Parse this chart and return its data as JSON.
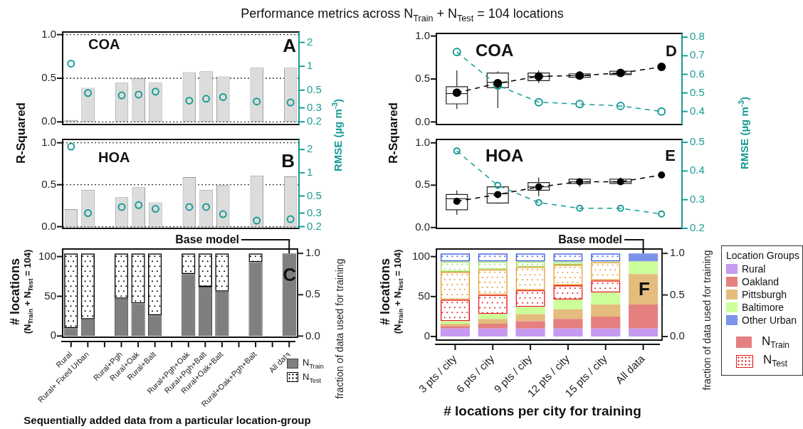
{
  "chart_data": [
    {
      "type": "bar",
      "title": "Performance metrics across N$_{Train}$ + N$_{Test}$ = 104 locations",
      "ylabel": "R-Squared",
      "y2label": "RMSE (µg m$^{-3}$)",
      "categories": [
        null,
        null,
        null,
        null,
        null,
        null,
        null,
        null,
        null,
        null,
        null,
        null,
        null,
        null
      ],
      "series": [
        {
          "type": "bar",
          "color": "#dcdcdc",
          "values": [
            0.02,
            0.39,
            null,
            0.45,
            0.5,
            0.45,
            null,
            0.57,
            0.58,
            0.52,
            null,
            0.62,
            null,
            0.62
          ]
        },
        {
          "type": "scatter",
          "axis": "y2",
          "color": "#1a9c96",
          "values": [
            1.08,
            0.46,
            null,
            0.43,
            0.44,
            0.48,
            null,
            0.37,
            0.39,
            0.41,
            null,
            0.36,
            null,
            0.35
          ]
        }
      ],
      "ylim": [
        -0.03,
        1.03
      ],
      "yticks": [
        {
          "value": 0,
          "label": "0.0"
        },
        {
          "value": 0.5,
          "label": "0.5"
        },
        {
          "value": 1,
          "label": "1.0"
        }
      ],
      "y2lim": [
        0.185,
        2.7
      ],
      "y2ticks": [
        0.2,
        0.3,
        0.5,
        1,
        2
      ],
      "log": "y2",
      "grid": "y",
      "marker": "circle",
      "tick_labels": "y",
      "annotations": [
        "COA",
        "A"
      ]
    },
    {
      "type": "bar",
      "categories": [
        null,
        null,
        null,
        null,
        null,
        null,
        null,
        null,
        null,
        null,
        null,
        null,
        null,
        null
      ],
      "series": [
        {
          "type": "bar",
          "color": "#dcdcdc",
          "values": [
            0.21,
            0.44,
            null,
            0.35,
            0.47,
            0.29,
            null,
            0.59,
            0.44,
            0.5,
            null,
            0.61,
            null,
            0.6
          ]
        },
        {
          "type": "scatter",
          "axis": "y2",
          "color": "#1a9c96",
          "values": [
            2.18,
            0.3,
            null,
            0.36,
            0.38,
            0.34,
            null,
            0.36,
            0.36,
            0.29,
            null,
            0.24,
            null,
            0.25
          ]
        }
      ],
      "ylim": [
        -0.02,
        1.04
      ],
      "yticks": [
        {
          "value": 0,
          "label": "0.0"
        },
        {
          "value": 0.5,
          "label": "0.5"
        },
        {
          "value": 1,
          "label": "1.0"
        }
      ],
      "y2lim": [
        0.19,
        2.7
      ],
      "y2ticks": [
        0.2,
        0.3,
        0.5,
        1,
        2
      ],
      "log": "y2",
      "grid": "y",
      "marker": "circle",
      "tick_labels": "y",
      "annotations": [
        "HOA",
        "B"
      ]
    },
    {
      "type": "bar",
      "stacked": true,
      "ylabel": "# locations\n(N$_{Train}$ + N$_{Test}$ = 104)",
      "y2label": "fraction of data used for training",
      "xlabel": "Sequentially added data from a particular location-group",
      "categories": [
        "Rural",
        "Rural+ Fixed Urban",
        null,
        "Rural+Pgh",
        "Rural+Oak",
        "Rural+Balt",
        null,
        "Rural+Pgh+Oak",
        "Rural+Pgh+Balt",
        "Rural+Oak+Balt",
        null,
        "Rural+Oak+Pgh+Balt",
        null,
        "All data"
      ],
      "series": [
        {
          "name": "N$_{Train}$",
          "color": "#7f7f7f",
          "values": [
            10,
            21,
            null,
            47,
            41,
            26,
            null,
            78,
            62,
            56,
            null,
            93,
            null,
            104
          ]
        },
        {
          "name": "N$_{Test}$",
          "color": "#000000",
          "values": [
            94,
            83,
            null,
            57,
            63,
            78,
            null,
            26,
            42,
            48,
            null,
            11,
            null,
            0
          ]
        }
      ],
      "ylim": [
        -1.5,
        109.5
      ],
      "yticks": [
        0,
        50,
        100
      ],
      "y2lim": [
        -0.014,
        1.053
      ],
      "y2ticks": [
        {
          "value": 0,
          "label": "0.0"
        },
        {
          "value": 0.5,
          "label": "0.5"
        },
        {
          "value": 1,
          "label": "1.0"
        }
      ],
      "legend": "bottom right",
      "annotations": [
        {
          "text": "Base model",
          "x": "All data",
          "y": 104
        },
        "C"
      ]
    },
    {
      "type": "box",
      "ylabel": "R-Squared",
      "y2label": "RMSE (µg m$^{-3}$)",
      "categories": [
        null,
        null,
        null,
        null,
        null,
        null
      ],
      "boxes": [
        {
          "low": 0.15,
          "q1": 0.21,
          "median": 0.33,
          "q3": 0.41,
          "high": 0.6
        },
        {
          "low": 0.16,
          "q1": 0.4,
          "median": 0.46,
          "q3": 0.57,
          "high": 0.59
        },
        {
          "low": 0.45,
          "q1": 0.48,
          "median": 0.53,
          "q3": 0.57,
          "high": 0.6
        },
        {
          "low": 0.5,
          "q1": 0.52,
          "median": 0.54,
          "q3": 0.56,
          "high": 0.59
        },
        {
          "low": 0.54,
          "q1": 0.55,
          "median": 0.56,
          "q3": 0.59,
          "high": 0.6
        },
        null
      ],
      "series": [
        {
          "type": "line",
          "color": "#000000",
          "marker": "circle",
          "line_style": "dashed",
          "values": [
            0.34,
            0.45,
            0.53,
            0.54,
            0.57,
            0.64
          ]
        },
        {
          "type": "line",
          "axis": "y2",
          "color": "#1a9c96",
          "marker": "circle",
          "line_style": "dashed",
          "values": [
            0.72,
            0.54,
            0.45,
            0.44,
            0.43,
            0.4
          ]
        }
      ],
      "ylim": [
        -0.03,
        1.03
      ],
      "yticks": [
        {
          "value": 0,
          "label": "0.0"
        },
        {
          "value": 0.5,
          "label": "0.5"
        },
        {
          "value": 1,
          "label": "1.0"
        }
      ],
      "y2lim": [
        0.33,
        0.82
      ],
      "y2ticks": [
        0.4,
        0.5,
        0.6,
        0.7,
        0.8
      ],
      "tick_labels": "y",
      "annotations": [
        "COA",
        "D"
      ]
    },
    {
      "type": "box",
      "categories": [
        null,
        null,
        null,
        null,
        null,
        null
      ],
      "boxes": [
        {
          "low": 0.15,
          "q1": 0.21,
          "median": 0.34,
          "q3": 0.39,
          "high": 0.44
        },
        {
          "low": 0.28,
          "q1": 0.29,
          "median": 0.4,
          "q3": 0.48,
          "high": 0.48
        },
        {
          "low": 0.37,
          "q1": 0.44,
          "median": 0.48,
          "q3": 0.53,
          "high": 0.59
        },
        {
          "low": 0.48,
          "q1": 0.52,
          "median": 0.54,
          "q3": 0.57,
          "high": 0.57
        },
        {
          "low": 0.51,
          "q1": 0.52,
          "median": 0.54,
          "q3": 0.57,
          "high": 0.59
        },
        null
      ],
      "series": [
        {
          "type": "line",
          "color": "#000000",
          "marker": "circle",
          "line_style": "dashed",
          "values": [
            0.31,
            0.39,
            0.48,
            0.54,
            0.54,
            0.62
          ]
        },
        {
          "type": "line",
          "axis": "y2",
          "color": "#1a9c96",
          "marker": "circle",
          "line_style": "dashed",
          "values": [
            0.47,
            0.35,
            0.29,
            0.27,
            0.27,
            0.25
          ]
        }
      ],
      "ylim": [
        -0.01,
        1.04
      ],
      "yticks": [
        {
          "value": 0,
          "label": "0.0"
        },
        {
          "value": 0.5,
          "label": "0.5"
        },
        {
          "value": 1,
          "label": "1.0"
        }
      ],
      "y2lim": [
        0.2,
        0.51
      ],
      "y2ticks": [
        0.2,
        0.3,
        0.4,
        0.5
      ],
      "tick_labels": "y",
      "annotations": [
        "HOA",
        "E"
      ]
    },
    {
      "type": "bar",
      "stacked": true,
      "ylabel": "# locations\n(N$_{Train}$ + N$_{Test}$ = 104)",
      "y2label": "fraction of data used for training",
      "xlabel": "# locations per city for training",
      "legend_title": "Location Groups",
      "categories": [
        "3 pts / city",
        "6 pts / city",
        "9 pts / city",
        "12 pts / city",
        "15 pts / city",
        "All data"
      ],
      "series": [
        {
          "name": "Rural",
          "color": "#c59af0",
          "values": [
            10,
            10,
            10,
            10,
            10,
            10
          ]
        },
        {
          "name": "Oakland",
          "color": "#e58080",
          "values": [
            3,
            6,
            9,
            12,
            15,
            30
          ]
        },
        {
          "name": "Pittsburgh",
          "color": "#e4bd7e",
          "values": [
            3,
            6,
            9,
            12,
            15,
            38
          ]
        },
        {
          "name": "Baltimore",
          "color": "#ccff99",
          "values": [
            3,
            6,
            9,
            12,
            15,
            16
          ]
        },
        {
          "name": "Other Urban",
          "color": "#7b93e8",
          "values": [
            0,
            0,
            0,
            0,
            0,
            10
          ]
        },
        {
          "color": "#e31a1c",
          "values": [
            27,
            24,
            21,
            18,
            15,
            0
          ]
        },
        {
          "color": "#e69a2e",
          "values": [
            35,
            32,
            29,
            26,
            23,
            0
          ]
        },
        {
          "color": "#99e05a",
          "values": [
            13,
            10,
            7,
            4,
            1,
            0
          ]
        },
        {
          "color": "#3355e0",
          "values": [
            10,
            10,
            10,
            10,
            10,
            0
          ]
        }
      ],
      "ylim": [
        -4.5,
        109.5
      ],
      "yticks": [
        0,
        50,
        100
      ],
      "y2lim": [
        -0.043,
        1.053
      ],
      "y2ticks": [
        {
          "value": 0,
          "label": "0.0"
        },
        {
          "value": 0.5,
          "label": "0.5"
        },
        {
          "value": 1,
          "label": "1.0"
        }
      ],
      "legend": "right",
      "annotations": [
        {
          "text": "Base model",
          "x": "All data",
          "y": 104
        },
        "F",
        "N$_{Train}$",
        "N$_{Test}$"
      ]
    }
  ]
}
